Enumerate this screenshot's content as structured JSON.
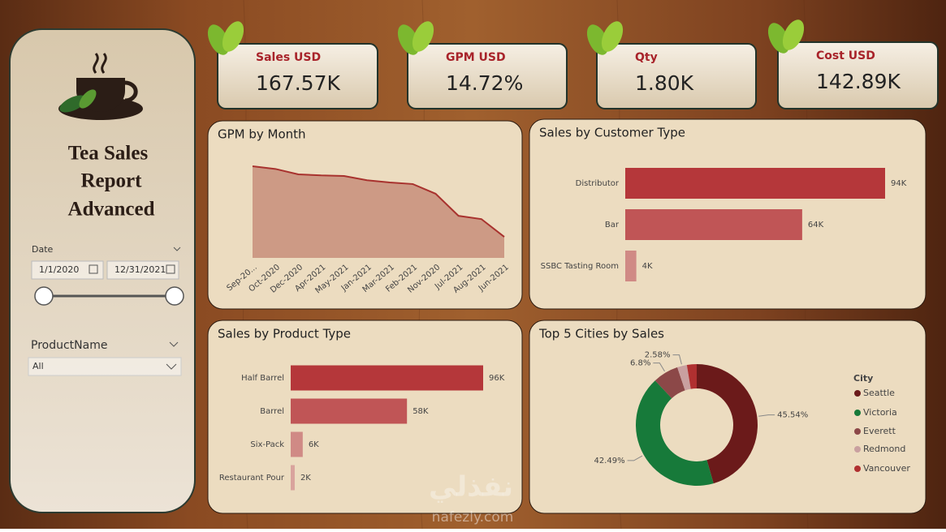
{
  "sidebar": {
    "title_lines": [
      "Tea Sales",
      "Report",
      "Advanced"
    ],
    "date_label": "Date",
    "date_from": "1/1/2020",
    "date_to": "12/31/2021",
    "product_label": "ProductName",
    "product_value": "All"
  },
  "kpis": [
    {
      "label": "Sales USD",
      "value": "167.57K"
    },
    {
      "label": "GPM USD",
      "value": "14.72%"
    },
    {
      "label": "Qty",
      "value": "1.80K"
    },
    {
      "label": "Cost USD",
      "value": "142.89K"
    }
  ],
  "watermark": {
    "arabic": "نفذلي",
    "latin": "nafezly.com"
  },
  "chart_data": [
    {
      "type": "area",
      "title": "GPM by Month",
      "color": "#a8322e",
      "fill": "#cd9a85",
      "categories": [
        "Sep-20...",
        "Oct-2020",
        "Dec-2020",
        "Apr-2021",
        "May-2021",
        "Jan-2021",
        "Mar-2021",
        "Feb-2021",
        "Nov-2020",
        "Jul-2021",
        "Aug-2021",
        "Jun-2021"
      ],
      "values": [
        17.0,
        16.5,
        15.5,
        15.3,
        15.2,
        14.4,
        14.0,
        13.7,
        11.9,
        7.8,
        7.2,
        3.9
      ]
    },
    {
      "type": "hbar",
      "title": "Sales by Customer Type",
      "categories": [
        "Distributor",
        "Bar",
        "SSBC Tasting Room"
      ],
      "values": [
        94000,
        64000,
        4000
      ],
      "value_labels": [
        "94K",
        "64K",
        "4K"
      ],
      "colors": [
        "#b5373a",
        "#c05556",
        "#d08a85"
      ]
    },
    {
      "type": "hbar",
      "title": "Sales by Product Type",
      "categories": [
        "Half Barrel",
        "Barrel",
        "Six-Pack",
        "Restaurant Pour"
      ],
      "values": [
        96000,
        58000,
        6000,
        2000
      ],
      "value_labels": [
        "96K",
        "58K",
        "6K",
        "2K"
      ],
      "colors": [
        "#b5373a",
        "#c05556",
        "#d08a85",
        "#d9a39d"
      ]
    },
    {
      "type": "donut",
      "title": "Top 5 Cities by Sales",
      "legend_title": "City",
      "series": [
        {
          "name": "Seattle",
          "color": "#6b1a1a",
          "values": [
            45.54
          ],
          "value_labels": [
            "45.54%"
          ]
        },
        {
          "name": "Victoria",
          "color": "#177a3a",
          "values": [
            42.49
          ],
          "value_labels": [
            "42.49%"
          ]
        },
        {
          "name": "Everett",
          "color": "#8c4848",
          "values": [
            6.8
          ],
          "value_labels": [
            "6.8%"
          ]
        },
        {
          "name": "Redmond",
          "color": "#c9a0a0",
          "values": [
            2.58
          ],
          "value_labels": [
            "2.58%"
          ]
        },
        {
          "name": "Vancouver",
          "color": "#b03030",
          "values": [
            2.59
          ]
        }
      ]
    }
  ]
}
